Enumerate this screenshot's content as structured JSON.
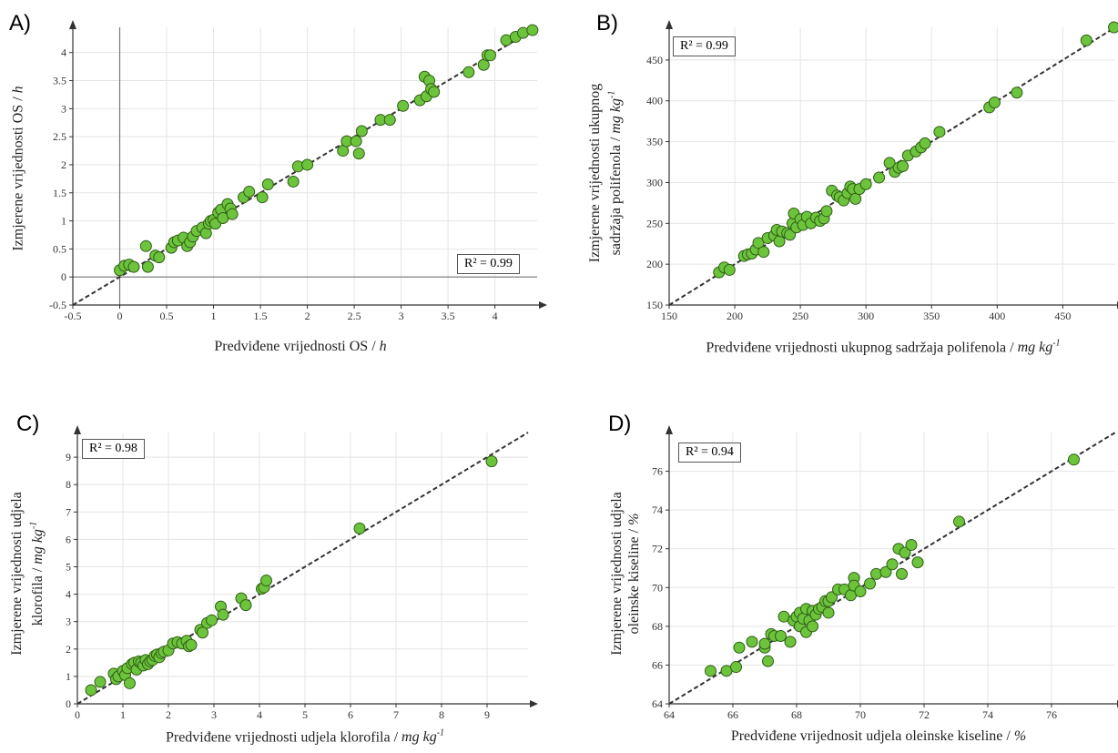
{
  "chart_data": [
    {
      "type": "scatter",
      "panel": "A)",
      "xlabel": "Predviđene vrijednosti OS",
      "xunit": "h",
      "ylabel": "Izmjerene vrijednosti OS",
      "yunit": "h",
      "annotation": "R² = 0.99",
      "xlim": [
        -0.5,
        4.45
      ],
      "ylim": [
        -0.5,
        4.45
      ],
      "xticks": [
        -0.5,
        0,
        0.5,
        1,
        1.5,
        2,
        2.5,
        3,
        3.5,
        4
      ],
      "yticks": [
        -0.5,
        0,
        0.5,
        1,
        1.5,
        2,
        2.5,
        3,
        3.5,
        4
      ],
      "zero_lines": true,
      "grid": true,
      "marker_color": "#6cc33c",
      "x": [
        0,
        0.05,
        0.1,
        0.15,
        0.28,
        0.3,
        0.38,
        0.42,
        0.55,
        0.58,
        0.62,
        0.68,
        0.72,
        0.75,
        0.78,
        0.82,
        0.88,
        0.92,
        0.95,
        0.97,
        1.0,
        1.02,
        1.05,
        1.08,
        1.1,
        1.15,
        1.18,
        1.2,
        1.32,
        1.38,
        1.52,
        1.58,
        1.85,
        1.9,
        2.0,
        2.38,
        2.42,
        2.52,
        2.55,
        2.58,
        2.78,
        2.88,
        3.02,
        3.2,
        3.25,
        3.27,
        3.3,
        3.32,
        3.35,
        3.72,
        3.88,
        3.92,
        3.95,
        4.12,
        4.22,
        4.3,
        4.4
      ],
      "y": [
        0.12,
        0.2,
        0.22,
        0.18,
        0.55,
        0.18,
        0.38,
        0.35,
        0.52,
        0.62,
        0.65,
        0.7,
        0.55,
        0.62,
        0.72,
        0.82,
        0.88,
        0.78,
        0.95,
        1.0,
        1.02,
        0.95,
        1.15,
        1.2,
        1.05,
        1.3,
        1.22,
        1.12,
        1.42,
        1.52,
        1.42,
        1.65,
        1.7,
        1.97,
        2.0,
        2.25,
        2.42,
        2.42,
        2.2,
        2.6,
        2.8,
        2.8,
        3.05,
        3.15,
        3.57,
        3.22,
        3.5,
        3.35,
        3.3,
        3.65,
        3.78,
        3.95,
        3.95,
        4.22,
        4.28,
        4.35,
        4.4
      ]
    },
    {
      "type": "scatter",
      "panel": "B)",
      "xlabel": "Predviđene vrijednosti ukupnog sadržaja polifenola",
      "xunit": "mg kg-1",
      "ylabel_line1": "Izmjerene vrijednosti ukupnog",
      "ylabel": "sadržaja polifenola",
      "yunit": "mg kg-1",
      "annotation": "R² = 0.99",
      "xlim": [
        150,
        490
      ],
      "ylim": [
        150,
        490
      ],
      "xticks": [
        150,
        200,
        250,
        300,
        350,
        400,
        450
      ],
      "yticks": [
        150,
        200,
        250,
        300,
        350,
        400,
        450
      ],
      "grid": true,
      "marker_color": "#6cc33c",
      "x": [
        188,
        192,
        196,
        207,
        210,
        213,
        216,
        218,
        222,
        225,
        230,
        232,
        234,
        236,
        240,
        242,
        244,
        245,
        247,
        250,
        252,
        255,
        258,
        262,
        265,
        268,
        270,
        274,
        278,
        280,
        283,
        286,
        288,
        290,
        292,
        295,
        300,
        310,
        318,
        322,
        325,
        328,
        332,
        338,
        342,
        345,
        356,
        394,
        398,
        415,
        468,
        489
      ],
      "y": [
        190,
        196,
        193,
        210,
        212,
        213,
        218,
        226,
        215,
        232,
        235,
        242,
        228,
        240,
        238,
        236,
        250,
        262,
        245,
        255,
        248,
        258,
        250,
        257,
        253,
        256,
        265,
        290,
        284,
        282,
        278,
        287,
        295,
        292,
        280,
        292,
        298,
        306,
        324,
        313,
        318,
        320,
        333,
        338,
        343,
        348,
        362,
        392,
        398,
        410,
        474,
        490
      ]
    },
    {
      "type": "scatter",
      "panel": "C)",
      "xlabel": "Predviđene vrijednosti udjela klorofila",
      "xunit": "mg kg-1",
      "ylabel_line1": "Izmjerene vrijednosti udjela",
      "ylabel": "klorofila",
      "yunit": "mg kg-1",
      "annotation": "R² = 0.98",
      "xlim": [
        0,
        9.9
      ],
      "ylim": [
        0,
        9.9
      ],
      "xticks": [
        0,
        1,
        2,
        3,
        4,
        5,
        6,
        7,
        8,
        9
      ],
      "yticks": [
        0,
        1,
        2,
        3,
        4,
        5,
        6,
        7,
        8,
        9
      ],
      "grid": true,
      "marker_color": "#6cc33c",
      "x": [
        0.3,
        0.5,
        0.8,
        0.85,
        0.9,
        1.0,
        1.05,
        1.1,
        1.15,
        1.2,
        1.25,
        1.3,
        1.35,
        1.4,
        1.45,
        1.5,
        1.55,
        1.6,
        1.65,
        1.7,
        1.75,
        1.8,
        1.85,
        1.9,
        2.0,
        2.1,
        2.2,
        2.3,
        2.4,
        2.45,
        2.5,
        2.7,
        2.75,
        2.85,
        2.95,
        3.15,
        3.2,
        3.6,
        3.7,
        4.05,
        4.1,
        4.15,
        6.2,
        9.1
      ],
      "y": [
        0.5,
        0.8,
        1.1,
        0.9,
        1.0,
        1.2,
        1.05,
        1.3,
        0.75,
        1.45,
        1.5,
        1.25,
        1.55,
        1.5,
        1.4,
        1.6,
        1.45,
        1.55,
        1.6,
        1.75,
        1.8,
        1.7,
        1.85,
        1.9,
        1.95,
        2.2,
        2.25,
        2.2,
        2.3,
        2.1,
        2.15,
        2.7,
        2.6,
        2.95,
        3.05,
        3.55,
        3.25,
        3.85,
        3.6,
        4.2,
        4.25,
        4.5,
        6.4,
        8.85
      ]
    },
    {
      "type": "scatter",
      "panel": "D)",
      "xlabel": "Predviđene vrijednosit udjela oleinske kiseline",
      "xunit": "%",
      "ylabel_line1": "Izmjerene vrijednosti udjela",
      "ylabel": "oleinske kiseline",
      "yunit": "%",
      "annotation": "R² = 0.94",
      "xlim": [
        64,
        78
      ],
      "ylim": [
        64,
        78
      ],
      "xticks": [
        64,
        66,
        68,
        70,
        72,
        74,
        76
      ],
      "yticks": [
        64,
        66,
        68,
        70,
        72,
        74,
        76
      ],
      "grid": true,
      "marker_color": "#6cc33c",
      "x": [
        65.3,
        65.8,
        66.1,
        66.2,
        66.6,
        67.0,
        67.0,
        67.1,
        67.2,
        67.3,
        67.5,
        67.6,
        67.8,
        67.9,
        68.0,
        68.1,
        68.1,
        68.2,
        68.3,
        68.3,
        68.4,
        68.5,
        68.5,
        68.6,
        68.7,
        68.8,
        68.9,
        69.0,
        69.0,
        69.1,
        69.3,
        69.5,
        69.7,
        69.8,
        69.8,
        70.0,
        70.3,
        70.5,
        70.8,
        71.0,
        71.2,
        71.3,
        71.4,
        71.6,
        71.8,
        73.1,
        76.7
      ],
      "y": [
        65.7,
        65.7,
        65.9,
        66.9,
        67.2,
        66.9,
        67.1,
        66.2,
        67.6,
        67.5,
        67.5,
        68.5,
        67.2,
        68.3,
        68.5,
        68.0,
        68.7,
        68.4,
        67.7,
        68.9,
        68.3,
        68.0,
        68.8,
        68.6,
        68.9,
        69.0,
        69.3,
        68.7,
        69.3,
        69.5,
        69.9,
        69.9,
        69.6,
        70.5,
        70.1,
        69.8,
        70.2,
        70.7,
        70.8,
        71.2,
        72.0,
        70.7,
        71.8,
        72.2,
        71.3,
        73.4,
        76.6
      ]
    }
  ]
}
